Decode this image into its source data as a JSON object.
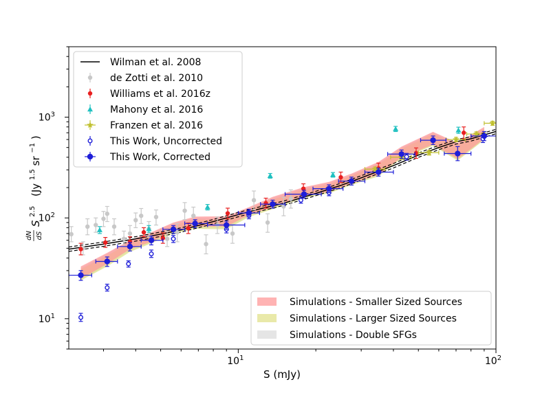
{
  "chart_data": {
    "type": "scatter",
    "title": "",
    "xlabel": "S (mJy)",
    "ylabel_prefix": "S",
    "ylabel_exponent": "2.5",
    "ylabel_unit_base": "(Jy",
    "ylabel_unit_exponent": "1.5",
    "ylabel_unit_sr": "sr",
    "ylabel_unit_sr_exponent": "−1",
    "ylabel_unit_close": ")",
    "ylabel_frac_num": "dN",
    "ylabel_frac_den": "dS",
    "xscale": "log",
    "yscale": "log",
    "xlim": [
      2.2,
      100
    ],
    "ylim": [
      5,
      5000
    ],
    "x_ticks": [
      {
        "value": 10,
        "base": "10",
        "exp": "1"
      },
      {
        "value": 100,
        "base": "10",
        "exp": "2"
      }
    ],
    "y_ticks": [
      {
        "value": 10,
        "base": "10",
        "exp": "1"
      },
      {
        "value": 100,
        "base": "10",
        "exp": "2"
      },
      {
        "value": 1000,
        "base": "10",
        "exp": "3"
      }
    ],
    "legend_top": [
      {
        "label": "Wilman et al. 2008",
        "marker": "line",
        "color": "#000000"
      },
      {
        "label": "de Zotti et al. 2010",
        "marker": "dot",
        "color": "#c8c8c8"
      },
      {
        "label": "Williams et al. 2016z",
        "marker": "dot",
        "color": "#e82020"
      },
      {
        "label": "Mahony et al. 2016",
        "marker": "triangle",
        "color": "#1fc0c0"
      },
      {
        "label": "Franzen et al. 2016",
        "marker": "star",
        "color": "#c0c030"
      },
      {
        "label": "This Work, Uncorrected",
        "marker": "open-circle",
        "color": "#1e1ed8"
      },
      {
        "label": "This Work, Corrected",
        "marker": "big-dot",
        "color": "#1e1ed8"
      }
    ],
    "legend_bottom": [
      {
        "label": "Simulations - Smaller Sized Sources",
        "color": "#ff9a9a"
      },
      {
        "label": "Simulations - Larger Sized Sources",
        "color": "#e2e28c"
      },
      {
        "label": "Simulations - Double SFGs",
        "color": "#dcdcdc"
      }
    ],
    "wilman_model": {
      "x": [
        2.2,
        3,
        4,
        5,
        6,
        8,
        10,
        12,
        15,
        20,
        25,
        30,
        40,
        50,
        60,
        70,
        80,
        100
      ],
      "y": [
        49,
        55,
        62,
        69,
        76,
        92,
        108,
        122,
        140,
        175,
        210,
        250,
        330,
        420,
        500,
        570,
        610,
        720
      ]
    },
    "series": [
      {
        "name": "de Zotti et al. 2010",
        "color": "#c8c8c8",
        "marker": "dot",
        "points": [
          {
            "x": 2.25,
            "y": 69,
            "ylo": 58,
            "yhi": 82
          },
          {
            "x": 2.5,
            "y": 50,
            "ylo": 43,
            "yhi": 58
          },
          {
            "x": 2.6,
            "y": 82,
            "ylo": 68,
            "yhi": 98
          },
          {
            "x": 2.8,
            "y": 85,
            "ylo": 72,
            "yhi": 100
          },
          {
            "x": 3.0,
            "y": 98,
            "ylo": 82,
            "yhi": 116
          },
          {
            "x": 3.1,
            "y": 110,
            "ylo": 92,
            "yhi": 130
          },
          {
            "x": 3.3,
            "y": 82,
            "ylo": 68,
            "yhi": 98
          },
          {
            "x": 3.6,
            "y": 62,
            "ylo": 52,
            "yhi": 74
          },
          {
            "x": 3.8,
            "y": 70,
            "ylo": 58,
            "yhi": 84
          },
          {
            "x": 4.0,
            "y": 95,
            "ylo": 80,
            "yhi": 112
          },
          {
            "x": 4.2,
            "y": 105,
            "ylo": 88,
            "yhi": 124
          },
          {
            "x": 4.5,
            "y": 78,
            "ylo": 65,
            "yhi": 92
          },
          {
            "x": 4.8,
            "y": 102,
            "ylo": 85,
            "yhi": 120
          },
          {
            "x": 5.3,
            "y": 62,
            "ylo": 52,
            "yhi": 74
          },
          {
            "x": 5.8,
            "y": 72,
            "ylo": 58,
            "yhi": 88
          },
          {
            "x": 6.2,
            "y": 118,
            "ylo": 96,
            "yhi": 142
          },
          {
            "x": 6.7,
            "y": 105,
            "ylo": 86,
            "yhi": 128
          },
          {
            "x": 7.5,
            "y": 55,
            "ylo": 44,
            "yhi": 68
          },
          {
            "x": 8.3,
            "y": 85,
            "ylo": 70,
            "yhi": 102
          },
          {
            "x": 9.5,
            "y": 70,
            "ylo": 56,
            "yhi": 86
          },
          {
            "x": 11.5,
            "y": 150,
            "ylo": 120,
            "yhi": 185
          },
          {
            "x": 13.0,
            "y": 90,
            "ylo": 72,
            "yhi": 110
          },
          {
            "x": 15.0,
            "y": 130,
            "ylo": 105,
            "yhi": 160
          },
          {
            "x": 16.0,
            "y": 155,
            "ylo": 125,
            "yhi": 190
          }
        ]
      },
      {
        "name": "Williams et al. 2016z",
        "color": "#e82020",
        "marker": "dot",
        "points": [
          {
            "x": 2.45,
            "y": 49,
            "ylo": 43,
            "yhi": 56
          },
          {
            "x": 3.05,
            "y": 57,
            "ylo": 51,
            "yhi": 64
          },
          {
            "x": 3.8,
            "y": 58,
            "ylo": 52,
            "yhi": 65
          },
          {
            "x": 4.3,
            "y": 72,
            "ylo": 65,
            "yhi": 80
          },
          {
            "x": 5.1,
            "y": 63,
            "ylo": 56,
            "yhi": 71
          },
          {
            "x": 6.4,
            "y": 79,
            "ylo": 70,
            "yhi": 89
          },
          {
            "x": 9.1,
            "y": 111,
            "ylo": 98,
            "yhi": 125
          },
          {
            "x": 12.8,
            "y": 140,
            "ylo": 125,
            "yhi": 157
          },
          {
            "x": 17.9,
            "y": 195,
            "ylo": 175,
            "yhi": 218
          },
          {
            "x": 25.0,
            "y": 253,
            "ylo": 225,
            "yhi": 285
          },
          {
            "x": 35.0,
            "y": 310,
            "ylo": 275,
            "yhi": 350
          },
          {
            "x": 49.0,
            "y": 440,
            "ylo": 390,
            "yhi": 495
          },
          {
            "x": 75.0,
            "y": 700,
            "ylo": 610,
            "yhi": 800
          }
        ]
      },
      {
        "name": "Mahony et al. 2016",
        "color": "#1fc0c0",
        "marker": "triangle",
        "points": [
          {
            "x": 2.9,
            "y": 76,
            "ylo": 70,
            "yhi": 82
          },
          {
            "x": 4.5,
            "y": 78,
            "ylo": 72,
            "yhi": 84
          },
          {
            "x": 7.6,
            "y": 128,
            "ylo": 120,
            "yhi": 136
          },
          {
            "x": 13.3,
            "y": 262,
            "ylo": 248,
            "yhi": 276
          },
          {
            "x": 23.3,
            "y": 268,
            "ylo": 254,
            "yhi": 282
          },
          {
            "x": 40.8,
            "y": 765,
            "ylo": 720,
            "yhi": 810
          },
          {
            "x": 71.5,
            "y": 742,
            "ylo": 690,
            "yhi": 795
          }
        ]
      },
      {
        "name": "Franzen et al. 2016",
        "color": "#c0c030",
        "marker": "star",
        "points": [
          {
            "x": 34.0,
            "y": 305,
            "ylo": 290,
            "yhi": 320,
            "xlo": 31.0,
            "xhi": 37.0
          },
          {
            "x": 43.0,
            "y": 400,
            "ylo": 380,
            "yhi": 420,
            "xlo": 39.0,
            "xhi": 47.0
          },
          {
            "x": 55.0,
            "y": 445,
            "ylo": 420,
            "yhi": 470,
            "xlo": 50.0,
            "xhi": 60.0
          },
          {
            "x": 70.0,
            "y": 600,
            "ylo": 570,
            "yhi": 630,
            "xlo": 64.0,
            "xhi": 76.0
          },
          {
            "x": 84.0,
            "y": 680,
            "ylo": 645,
            "yhi": 715,
            "xlo": 77.0,
            "xhi": 91.0
          },
          {
            "x": 97.0,
            "y": 870,
            "ylo": 830,
            "yhi": 910,
            "xlo": 90.0,
            "xhi": 105.0
          }
        ]
      },
      {
        "name": "This Work, Uncorrected",
        "color": "#1e1ed8",
        "marker": "open-circle",
        "points": [
          {
            "x": 2.45,
            "y": 10.3,
            "ylo": 9.4,
            "yhi": 11.3
          },
          {
            "x": 3.1,
            "y": 20.3,
            "ylo": 18.8,
            "yhi": 22.0
          },
          {
            "x": 3.75,
            "y": 35.0,
            "ylo": 32.5,
            "yhi": 37.5
          },
          {
            "x": 4.6,
            "y": 44.0,
            "ylo": 40.5,
            "yhi": 48.0
          },
          {
            "x": 5.6,
            "y": 62.0,
            "ylo": 57.0,
            "yhi": 67.0
          },
          {
            "x": 9.0,
            "y": 77.0,
            "ylo": 71.0,
            "yhi": 83.0
          },
          {
            "x": 11.0,
            "y": 106.0,
            "ylo": 98.0,
            "yhi": 114.0
          },
          {
            "x": 17.5,
            "y": 150.0,
            "ylo": 140.0,
            "yhi": 161.0
          },
          {
            "x": 22.5,
            "y": 178.0,
            "ylo": 166.0,
            "yhi": 191.0
          },
          {
            "x": 45.0,
            "y": 405.0,
            "ylo": 375.0,
            "yhi": 437.0
          },
          {
            "x": 89.0,
            "y": 610.0,
            "ylo": 560.0,
            "yhi": 665.0
          }
        ]
      },
      {
        "name": "This Work, Corrected",
        "color": "#1e1ed8",
        "marker": "big-dot",
        "points": [
          {
            "x": 2.45,
            "y": 27,
            "ylo": 24,
            "yhi": 30,
            "xlo": 2.2,
            "xhi": 2.7
          },
          {
            "x": 3.1,
            "y": 37,
            "ylo": 33,
            "yhi": 41,
            "xlo": 2.8,
            "xhi": 3.4
          },
          {
            "x": 3.8,
            "y": 52,
            "ylo": 47,
            "yhi": 57,
            "xlo": 3.4,
            "xhi": 4.2
          },
          {
            "x": 4.6,
            "y": 60,
            "ylo": 54,
            "yhi": 66,
            "xlo": 4.2,
            "xhi": 5.1
          },
          {
            "x": 5.6,
            "y": 77,
            "ylo": 70,
            "yhi": 84,
            "xlo": 5.1,
            "xhi": 6.2
          },
          {
            "x": 6.8,
            "y": 88,
            "ylo": 80,
            "yhi": 96,
            "xlo": 6.2,
            "xhi": 7.6
          },
          {
            "x": 9.0,
            "y": 85,
            "ylo": 77,
            "yhi": 93,
            "xlo": 7.6,
            "xhi": 10.6
          },
          {
            "x": 11.0,
            "y": 112,
            "ylo": 102,
            "yhi": 122,
            "xlo": 10.0,
            "xhi": 12.1
          },
          {
            "x": 13.6,
            "y": 137,
            "ylo": 125,
            "yhi": 150,
            "xlo": 12.2,
            "xhi": 15.2
          },
          {
            "x": 18.0,
            "y": 172,
            "ylo": 157,
            "yhi": 188,
            "xlo": 15.2,
            "xhi": 21.0
          },
          {
            "x": 22.5,
            "y": 195,
            "ylo": 178,
            "yhi": 213,
            "xlo": 19.5,
            "xhi": 25.5
          },
          {
            "x": 27.5,
            "y": 232,
            "ylo": 212,
            "yhi": 254,
            "xlo": 24.5,
            "xhi": 31.0
          },
          {
            "x": 35.0,
            "y": 285,
            "ylo": 260,
            "yhi": 312,
            "xlo": 31.0,
            "xhi": 40.0
          },
          {
            "x": 43.0,
            "y": 430,
            "ylo": 390,
            "yhi": 472,
            "xlo": 38.0,
            "xhi": 48.5
          },
          {
            "x": 57.0,
            "y": 590,
            "ylo": 535,
            "yhi": 650,
            "xlo": 51.0,
            "xhi": 64.0
          },
          {
            "x": 71.0,
            "y": 435,
            "ylo": 370,
            "yhi": 510,
            "xlo": 63.0,
            "xhi": 80.0
          },
          {
            "x": 90.0,
            "y": 650,
            "ylo": 585,
            "yhi": 720,
            "xlo": 80.0,
            "xhi": 101.0
          }
        ]
      }
    ],
    "bands": [
      {
        "name": "Simulations - Double SFGs",
        "color": "#dcdcdc",
        "x": [
          2.45,
          3.1,
          3.8,
          4.6,
          5.6,
          6.8,
          9.0,
          11.0,
          13.6,
          18.0,
          22.5,
          27.5,
          35.0,
          43.0,
          57.0,
          71.0,
          90.0
        ],
        "lo": [
          24,
          34,
          47,
          57,
          72,
          80,
          79,
          104,
          124,
          162,
          178,
          215,
          262,
          395,
          525,
          378,
          600
        ],
        "hi": [
          32,
          44,
          59,
          71,
          88,
          100,
          100,
          125,
          158,
          197,
          222,
          268,
          350,
          500,
          700,
          540,
          780
        ]
      },
      {
        "name": "Simulations - Larger Sized Sources",
        "color": "#e2e28c",
        "x": [
          2.45,
          3.1,
          3.8,
          4.6,
          5.6,
          6.8,
          9.0,
          11.0,
          13.6,
          18.0,
          22.5,
          27.5,
          35.0,
          43.0,
          57.0,
          71.0,
          90.0
        ],
        "lo": [
          24,
          33,
          46,
          56,
          70,
          78,
          77,
          102,
          122,
          158,
          175,
          212,
          258,
          390,
          520,
          370,
          595
        ],
        "hi": [
          31,
          42,
          57,
          68,
          84,
          96,
          96,
          121,
          152,
          190,
          215,
          262,
          340,
          485,
          680,
          525,
          760
        ]
      },
      {
        "name": "Simulations - Smaller Sized Sources",
        "color": "#ff9a9a",
        "x": [
          2.45,
          3.1,
          3.8,
          4.6,
          5.6,
          6.8,
          9.0,
          11.0,
          13.6,
          18.0,
          22.5,
          27.5,
          35.0,
          43.0,
          57.0,
          71.0,
          90.0
        ],
        "lo": [
          25,
          35,
          49,
          58,
          74,
          82,
          82,
          107,
          128,
          165,
          182,
          220,
          268,
          400,
          535,
          385,
          610
        ],
        "hi": [
          33,
          45,
          60,
          72,
          90,
          103,
          104,
          128,
          162,
          202,
          228,
          275,
          360,
          510,
          715,
          555,
          800
        ]
      }
    ]
  }
}
